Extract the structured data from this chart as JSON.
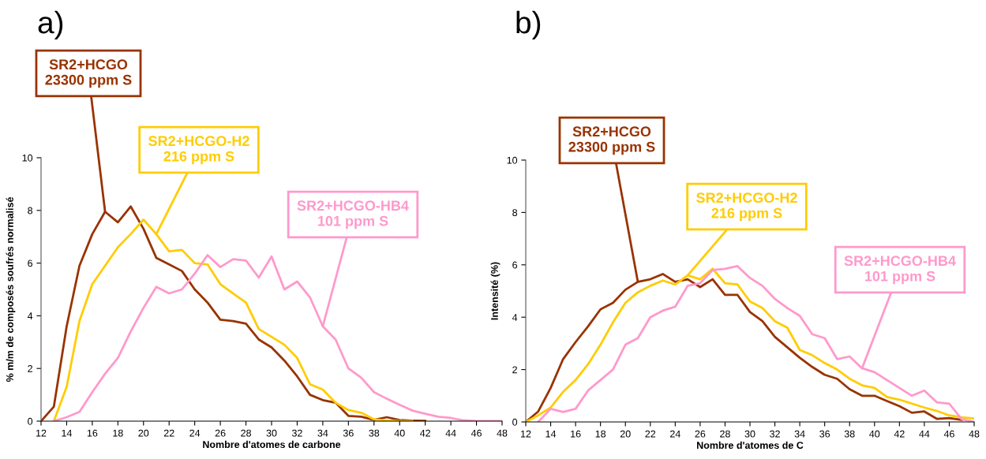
{
  "chart_data": [
    {
      "type": "line",
      "title": "a)",
      "xlabel": "Nombre d'atomes de carbone",
      "ylabel": "% m/m de composés soufrés normalisé",
      "xlim": [
        12,
        48
      ],
      "xticks": [
        12,
        14,
        16,
        18,
        20,
        22,
        24,
        26,
        28,
        30,
        32,
        34,
        36,
        38,
        40,
        42,
        44,
        46,
        48
      ],
      "ylim": [
        0,
        10
      ],
      "yticks": [
        0,
        2,
        4,
        6,
        8,
        10
      ],
      "grid": false,
      "legend": false,
      "marker": "none",
      "line_style": "solid",
      "series": [
        {
          "name": "SR2+HCGO\n23300 ppm S",
          "color": "#993300",
          "x": [
            12,
            13,
            14,
            15,
            16,
            17,
            18,
            19,
            20,
            21,
            22,
            23,
            24,
            25,
            26,
            27,
            28,
            29,
            30,
            31,
            32,
            33,
            34,
            35,
            36,
            37,
            38,
            39,
            40,
            41,
            42
          ],
          "values": [
            0,
            0.55,
            3.6,
            5.9,
            7.1,
            7.95,
            7.55,
            8.15,
            7.3,
            6.2,
            5.95,
            5.7,
            5.0,
            4.5,
            3.85,
            3.8,
            3.7,
            3.1,
            2.8,
            2.3,
            1.7,
            1.0,
            0.8,
            0.7,
            0.2,
            0.17,
            0.05,
            0.15,
            0.04,
            0.02,
            0.01
          ]
        },
        {
          "name": "SR2+HCGO-H2\n216 ppm S",
          "color": "#ffcc00",
          "x": [
            13,
            14,
            15,
            16,
            17,
            18,
            19,
            20,
            21,
            22,
            23,
            24,
            25,
            26,
            27,
            28,
            29,
            30,
            31,
            32,
            33,
            34,
            35,
            36,
            37,
            38,
            39,
            40,
            41
          ],
          "values": [
            0,
            1.3,
            3.8,
            5.2,
            5.9,
            6.6,
            7.1,
            7.65,
            7.1,
            6.45,
            6.5,
            6.0,
            5.95,
            5.2,
            4.85,
            4.5,
            3.5,
            3.2,
            2.9,
            2.4,
            1.4,
            1.2,
            0.7,
            0.42,
            0.32,
            0.07,
            0.02,
            0,
            0
          ]
        },
        {
          "name": "SR2+HCGO-HB4\n101 ppm S",
          "color": "#ff99cc",
          "x": [
            13,
            14,
            15,
            16,
            17,
            18,
            19,
            20,
            21,
            22,
            23,
            24,
            25,
            26,
            27,
            28,
            29,
            30,
            31,
            32,
            33,
            34,
            35,
            36,
            37,
            38,
            39,
            40,
            41,
            42,
            43,
            44,
            45,
            46,
            47,
            48
          ],
          "values": [
            0,
            0.15,
            0.35,
            1.1,
            1.8,
            2.4,
            3.4,
            4.3,
            5.1,
            4.85,
            5.0,
            5.6,
            6.3,
            5.85,
            6.15,
            6.1,
            5.45,
            6.25,
            5.0,
            5.3,
            4.7,
            3.6,
            3.1,
            2.0,
            1.65,
            1.1,
            0.85,
            0.62,
            0.4,
            0.28,
            0.17,
            0.12,
            0.03,
            0,
            0,
            0
          ]
        }
      ]
    },
    {
      "type": "line",
      "title": "b)",
      "xlabel": "Nombre d'atomes de C",
      "ylabel": "Intensité (%)",
      "xlim": [
        12,
        48
      ],
      "xticks": [
        12,
        14,
        16,
        18,
        20,
        22,
        24,
        26,
        28,
        30,
        32,
        34,
        36,
        38,
        40,
        42,
        44,
        46,
        48
      ],
      "ylim": [
        0,
        10
      ],
      "yticks": [
        0,
        2,
        4,
        6,
        8,
        10
      ],
      "grid": false,
      "legend": false,
      "marker": "none",
      "line_style": "solid",
      "series": [
        {
          "name": "SR2+HCGO\n23300 ppm S",
          "color": "#993300",
          "x": [
            12,
            13,
            14,
            15,
            16,
            17,
            18,
            19,
            20,
            21,
            22,
            23,
            24,
            25,
            26,
            27,
            28,
            29,
            30,
            31,
            32,
            33,
            34,
            35,
            36,
            37,
            38,
            39,
            40,
            41,
            42,
            43,
            44,
            45,
            46,
            47
          ],
          "values": [
            0,
            0.4,
            1.3,
            2.4,
            3.05,
            3.65,
            4.3,
            4.55,
            5.05,
            5.35,
            5.45,
            5.65,
            5.35,
            5.45,
            5.15,
            5.45,
            4.85,
            4.85,
            4.2,
            3.85,
            3.25,
            2.85,
            2.45,
            2.1,
            1.8,
            1.65,
            1.25,
            1.0,
            1.0,
            0.8,
            0.6,
            0.35,
            0.4,
            0.12,
            0.15,
            0.08
          ]
        },
        {
          "name": "SR2+HCGO-H2\n216 ppm S",
          "color": "#ffcc00",
          "x": [
            12,
            13,
            14,
            15,
            16,
            17,
            18,
            19,
            20,
            21,
            22,
            23,
            24,
            25,
            26,
            27,
            28,
            29,
            30,
            31,
            32,
            33,
            34,
            35,
            36,
            37,
            38,
            39,
            40,
            41,
            42,
            43,
            44,
            45,
            46,
            47,
            48
          ],
          "values": [
            0,
            0.25,
            0.55,
            1.15,
            1.6,
            2.2,
            2.95,
            3.8,
            4.55,
            4.95,
            5.2,
            5.4,
            5.25,
            5.6,
            5.45,
            5.85,
            5.3,
            5.25,
            4.6,
            4.35,
            3.85,
            3.6,
            2.75,
            2.55,
            2.25,
            2.0,
            1.65,
            1.4,
            1.3,
            0.95,
            0.85,
            0.7,
            0.55,
            0.42,
            0.25,
            0.18,
            0.13
          ]
        },
        {
          "name": "SR2+HCGO-HB4\n101 ppm S",
          "color": "#ff99cc",
          "x": [
            13,
            14,
            15,
            16,
            17,
            18,
            19,
            20,
            21,
            22,
            23,
            24,
            25,
            26,
            27,
            28,
            29,
            30,
            31,
            32,
            33,
            34,
            35,
            36,
            37,
            38,
            39,
            40,
            41,
            42,
            43,
            44,
            45,
            46,
            47,
            48
          ],
          "values": [
            0,
            0.5,
            0.38,
            0.5,
            1.2,
            1.6,
            2.0,
            2.95,
            3.2,
            4.0,
            4.25,
            4.4,
            5.2,
            5.3,
            5.8,
            5.85,
            5.95,
            5.5,
            5.2,
            4.7,
            4.35,
            4.05,
            3.35,
            3.2,
            2.4,
            2.5,
            2.05,
            1.9,
            1.6,
            1.3,
            1.0,
            1.2,
            0.75,
            0.7,
            0.1,
            0
          ]
        }
      ]
    }
  ]
}
